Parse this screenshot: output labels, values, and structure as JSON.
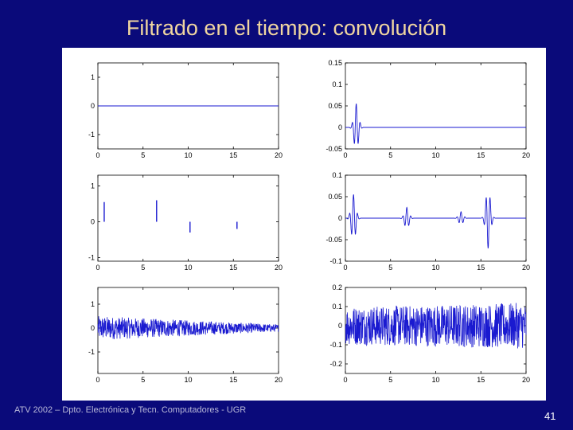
{
  "slide": {
    "title": "Filtrado en el tiempo: convolución",
    "footer": "ATV 2002 – Dpto. Electrónica y Tecn. Computadores - UGR",
    "page_number": "41"
  },
  "colors": {
    "background": "#0a0a7a",
    "title": "#f0d6a0",
    "trace": "#1a1ad0"
  },
  "chart_data": [
    {
      "type": "line",
      "title": "",
      "xlabel": "",
      "ylabel": "",
      "xlim": [
        0,
        20
      ],
      "ylim": [
        -1.5,
        1.5
      ],
      "x_ticks": [
        "0",
        "5",
        "10",
        "15",
        "20"
      ],
      "y_ticks": [
        "1",
        "0",
        "-1"
      ],
      "signal": "zero",
      "series": [
        {
          "x": [
            0,
            20
          ],
          "values": [
            0,
            0
          ]
        }
      ]
    },
    {
      "type": "line",
      "title": "",
      "xlabel": "",
      "ylabel": "",
      "xlim": [
        0,
        20
      ],
      "ylim": [
        -0.05,
        0.15
      ],
      "x_ticks": [
        "0",
        "5",
        "10",
        "15",
        "20"
      ],
      "y_ticks": [
        "0.15",
        "0.1",
        "0.05",
        "0",
        "-0.05"
      ],
      "signal": "wavelet",
      "centers": [
        1.2
      ],
      "amplitude": 0.055
    },
    {
      "type": "line",
      "title": "",
      "xlabel": "",
      "ylabel": "",
      "xlim": [
        0,
        20
      ],
      "ylim": [
        -1.1,
        1.3
      ],
      "x_ticks": [
        "0",
        "5",
        "10",
        "15",
        "20"
      ],
      "y_ticks": [
        "1",
        "0",
        "-1"
      ],
      "signal": "impulses",
      "impulses": [
        {
          "x": 0.7,
          "y": 0.55
        },
        {
          "x": 6.5,
          "y": 0.6
        },
        {
          "x": 10.2,
          "y": -0.3
        },
        {
          "x": 15.4,
          "y": -0.2
        }
      ]
    },
    {
      "type": "line",
      "title": "",
      "xlabel": "",
      "ylabel": "",
      "xlim": [
        0,
        20
      ],
      "ylim": [
        -0.1,
        0.1
      ],
      "x_ticks": [
        "0",
        "5",
        "10",
        "15",
        "20"
      ],
      "y_ticks": [
        "0.1",
        "0.05",
        "0",
        "-0.05",
        "-0.1"
      ],
      "signal": "wavelet",
      "centers": [
        0.9,
        6.8,
        12.8,
        15.8
      ],
      "amplitudes": [
        0.055,
        0.025,
        0.015,
        -0.07
      ]
    },
    {
      "type": "line",
      "title": "",
      "xlabel": "",
      "ylabel": "",
      "xlim": [
        0,
        20
      ],
      "ylim": [
        -1.9,
        1.7
      ],
      "x_ticks": [
        "0",
        "5",
        "10",
        "15",
        "20"
      ],
      "y_ticks": [
        "1",
        "0",
        "-1"
      ],
      "signal": "noise",
      "amplitude_start": 0.5,
      "amplitude_end": 0.15
    },
    {
      "type": "line",
      "title": "",
      "xlabel": "",
      "ylabel": "",
      "xlim": [
        0,
        20
      ],
      "ylim": [
        -0.25,
        0.2
      ],
      "x_ticks": [
        "0",
        "5",
        "10",
        "15",
        "20"
      ],
      "y_ticks": [
        "0.2",
        "0.1",
        "0",
        "-0.1",
        "-0.2"
      ],
      "signal": "noise",
      "amplitude_start": 0.1,
      "amplitude_end": 0.12
    }
  ]
}
